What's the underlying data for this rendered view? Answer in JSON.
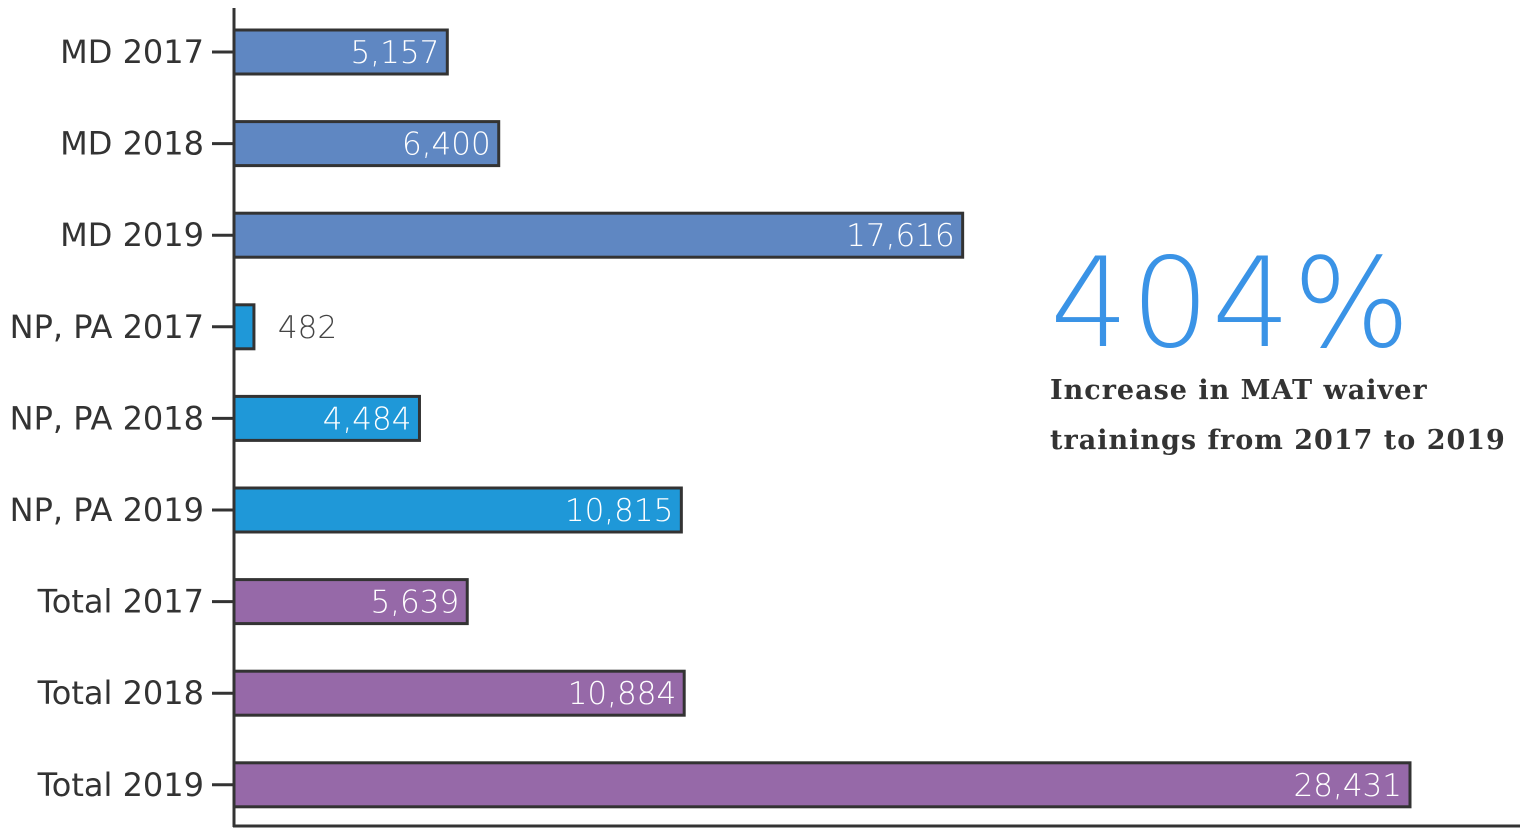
{
  "chart_data": {
    "type": "bar",
    "orientation": "horizontal",
    "categories": [
      "MD 2017",
      "MD 2018",
      "MD 2019",
      "NP, PA 2017",
      "NP, PA 2018",
      "NP, PA 2019",
      "Total 2017",
      "Total 2018",
      "Total 2019"
    ],
    "values": [
      5157,
      6400,
      17616,
      482,
      4484,
      10815,
      5639,
      10884,
      28431
    ],
    "value_labels": [
      "5,157",
      "6,400",
      "17,616",
      "482",
      "4,484",
      "10,815",
      "5,639",
      "10,884",
      "28,431"
    ],
    "bar_colors": [
      "#5f87c2",
      "#5f87c2",
      "#5f87c2",
      "#1f98d8",
      "#1f98d8",
      "#1f98d8",
      "#9669a8",
      "#9669a8",
      "#9669a8"
    ],
    "xlim": [
      0,
      31000
    ],
    "grid": false,
    "legend": "none",
    "title": "",
    "xlabel": "",
    "ylabel": ""
  },
  "callout": {
    "stat": "404%",
    "caption": "Increase in MAT waiver trainings from 2017 to 2019",
    "color": "#3a93e6"
  },
  "colors": {
    "axis": "#333333",
    "bar_outline": "#333333",
    "label_outside": "#444444",
    "label_inside": "#ffffff"
  }
}
